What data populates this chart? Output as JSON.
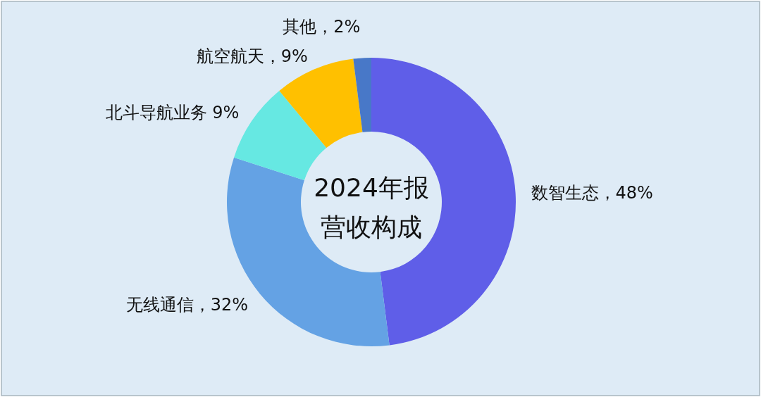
{
  "chart_data": {
    "type": "donut",
    "title": "2024年报营收构成",
    "categories": [
      "数智生态",
      "无线通信",
      "北斗导航业务",
      "航空航天",
      "其他"
    ],
    "values": [
      48,
      32,
      9,
      9,
      2
    ],
    "colors": [
      "#5f5ee8",
      "#64a2e4",
      "#66e8e2",
      "#ffc000",
      "#4878c8"
    ],
    "value_labels": [
      "，48%",
      "，32%",
      " 9%",
      "，9%",
      "，2%"
    ]
  }
}
